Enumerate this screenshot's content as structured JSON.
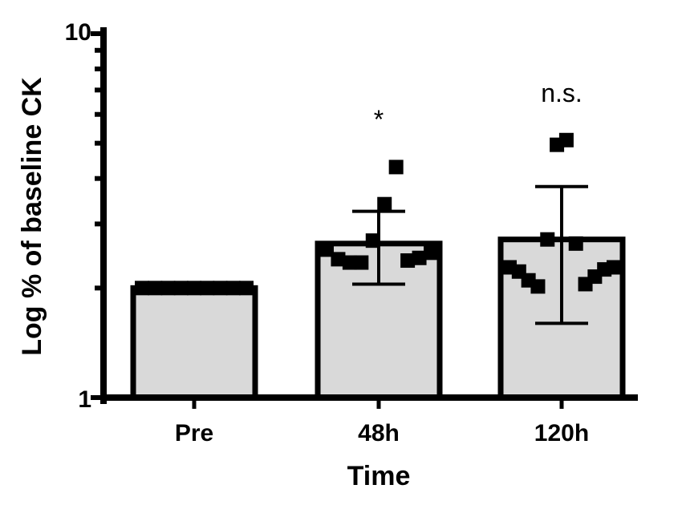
{
  "chart_data": {
    "type": "bar",
    "title": "",
    "xlabel": "Time",
    "ylabel": "Log % of baseline CK",
    "y_scale": "log",
    "ylim": [
      1,
      10
    ],
    "y_tick_labels": [
      "1",
      "10"
    ],
    "categories": [
      "Pre",
      "48h",
      "120h"
    ],
    "values": [
      2.0,
      2.65,
      2.72
    ],
    "error_bars": [
      {
        "low": 2.0,
        "high": 2.0
      },
      {
        "low": 2.05,
        "high": 3.25
      },
      {
        "low": 1.6,
        "high": 3.8
      }
    ],
    "points": [
      [
        2.0,
        2.0,
        2.0,
        2.0,
        2.0,
        2.0,
        2.0,
        2.0,
        2.0
      ],
      [
        2.55,
        2.4,
        2.35,
        2.35,
        2.7,
        3.4,
        4.3,
        2.38,
        2.42,
        2.5
      ],
      [
        2.28,
        2.22,
        2.1,
        2.02,
        2.72,
        4.95,
        5.1,
        2.65,
        2.05,
        2.15,
        2.25,
        2.28
      ]
    ],
    "annotations": [
      "",
      "*",
      "n.s."
    ],
    "bar_fill": "#d9d9d9",
    "stroke": "#000000",
    "grid": false,
    "legend": "none"
  }
}
